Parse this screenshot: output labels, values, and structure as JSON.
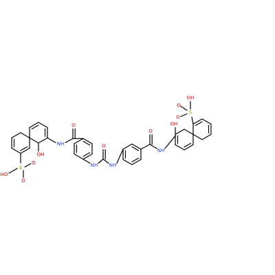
{
  "colors": {
    "bond": "#000000",
    "oxygen": "#d40000",
    "nitrogen": "#1a3bcc",
    "sulfur": "#b08a00",
    "background": "#ffffff"
  },
  "labels": {
    "left_oh": "OH",
    "left_nh": "NH",
    "left_amide_o": "O",
    "left_so3h_oh": "HO",
    "left_s": "S",
    "left_so_o1": "O",
    "left_so_o2": "O",
    "urea_nh_left": "NH",
    "urea_nh_right": "NH",
    "urea_o": "O",
    "right_amide_o": "O",
    "right_nh": "NH",
    "right_oh": "OH",
    "right_so3h_oh": "OH",
    "right_s": "S",
    "right_so_o1": "O",
    "right_so_o2": "O"
  }
}
